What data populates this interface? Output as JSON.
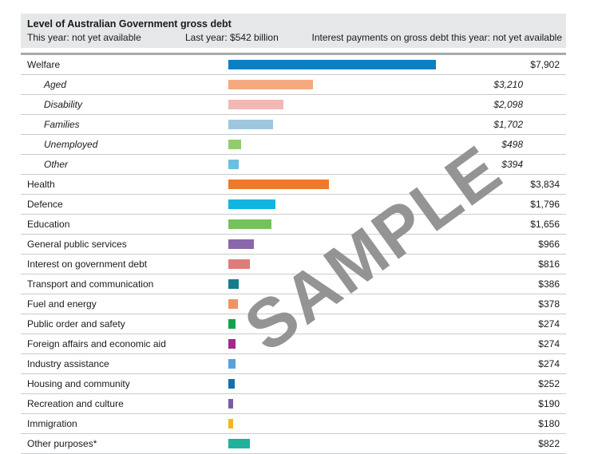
{
  "header": {
    "title": "Level of Australian Government gross debt",
    "this_year": "This year: not yet available",
    "last_year": "Last year: $542 billion",
    "interest": "Interest payments on gross debt this year: not yet available"
  },
  "watermark": "SAMPLE",
  "chart_data": {
    "type": "bar",
    "orientation": "horizontal",
    "title": "",
    "xlabel": "",
    "ylabel": "",
    "xlim": [
      0,
      7902
    ],
    "grid": false,
    "categories": [
      "Welfare",
      "Aged",
      "Disability",
      "Families",
      "Unemployed",
      "Other",
      "Health",
      "Defence",
      "Education",
      "General public services",
      "Interest on government debt",
      "Transport and communication",
      "Fuel and energy",
      "Public order and safety",
      "Foreign affairs and economic aid",
      "Industry assistance",
      "Housing and community",
      "Recreation and culture",
      "Immigration",
      "Other purposes*"
    ],
    "values": [
      7902,
      3210,
      2098,
      1702,
      498,
      394,
      3834,
      1796,
      1656,
      966,
      816,
      386,
      378,
      274,
      274,
      274,
      252,
      190,
      180,
      822
    ],
    "value_labels": [
      "$7,902",
      "$3,210",
      "$2,098",
      "$1,702",
      "$498",
      "$394",
      "$3,834",
      "$1,796",
      "$1,656",
      "$966",
      "$816",
      "$386",
      "$378",
      "$274",
      "$274",
      "$274",
      "$252",
      "$190",
      "$180",
      "$822"
    ],
    "subcategory_of_welfare": [
      false,
      true,
      true,
      true,
      true,
      true,
      false,
      false,
      false,
      false,
      false,
      false,
      false,
      false,
      false,
      false,
      false,
      false,
      false,
      false
    ],
    "colors": [
      "#0a7fc2",
      "#f5a97f",
      "#f2b8b3",
      "#9ec7de",
      "#93cc6e",
      "#6cbfe0",
      "#ee7a2c",
      "#10b6e0",
      "#76c25a",
      "#8a66ab",
      "#e07b7b",
      "#157e8a",
      "#f0935e",
      "#14a34a",
      "#a4298e",
      "#5ba1d8",
      "#1570b0",
      "#7b5ca8",
      "#f3b71d",
      "#1fb29a"
    ]
  }
}
